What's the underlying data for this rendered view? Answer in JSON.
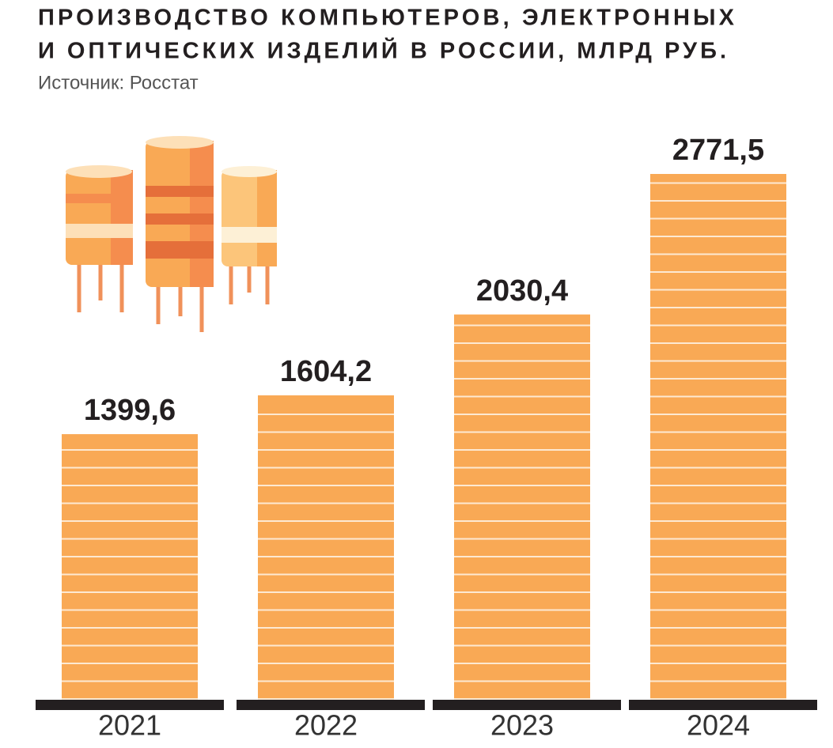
{
  "chart_data": {
    "type": "bar",
    "title": [
      "ПРОИЗВОДСТВО КОМПЬЮТЕРОВ, ЭЛЕКТРОННЫХ",
      "И ОПТИЧЕСКИХ ИЗДЕЛИЙ В РОССИИ, МЛРД РУБ."
    ],
    "subtitle": "Источник: Росстат",
    "categories": [
      "2021",
      "2022",
      "2023",
      "2024"
    ],
    "values": [
      1399.6,
      1604.2,
      2030.4,
      2771.5
    ],
    "value_labels": [
      "1399,6",
      "1604,2",
      "2030,4",
      "2771,5"
    ],
    "color": "#f9a955"
  }
}
